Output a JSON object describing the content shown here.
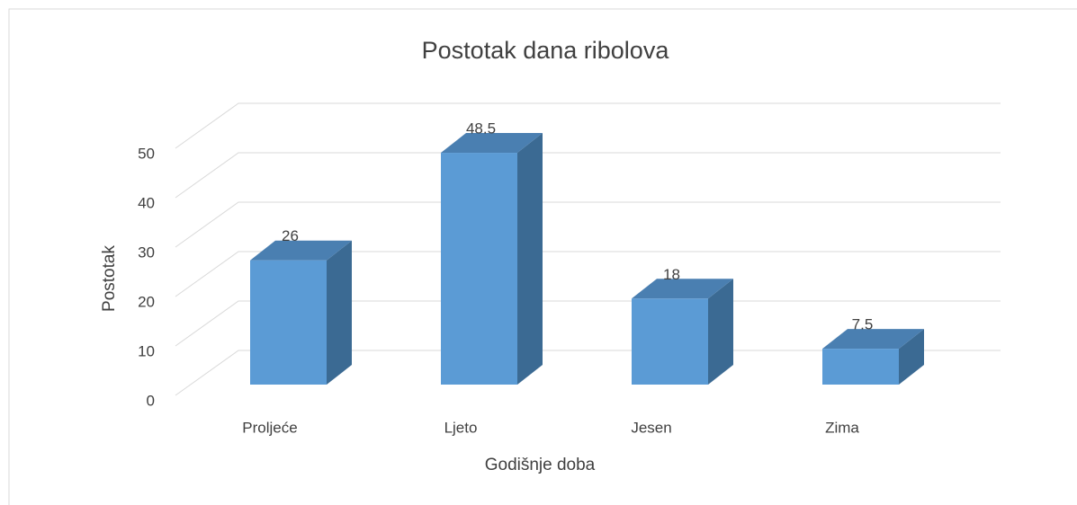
{
  "chart_data": {
    "type": "bar3d",
    "title": "Postotak dana ribolova",
    "x_label": "Godišnje doba",
    "y_label": "Postotak",
    "categories": [
      "Proljeće",
      "Ljeto",
      "Jesen",
      "Zima"
    ],
    "values": [
      26,
      48.5,
      18,
      7.5
    ],
    "color": "#5b9bd5",
    "ylim": [
      0,
      50
    ],
    "yticks": [
      0,
      10,
      20,
      30,
      40,
      50
    ],
    "grid": true
  }
}
